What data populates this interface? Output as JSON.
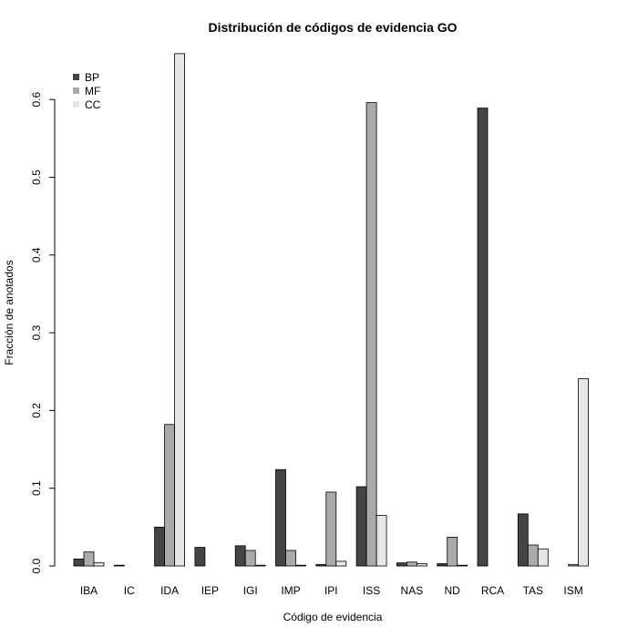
{
  "chart_data": {
    "type": "bar",
    "title": "Distribución de códigos de evidencia GO",
    "xlabel": "Código de evidencia",
    "ylabel": "Fracción de anotados",
    "ylim": [
      0,
      0.66
    ],
    "yticks": [
      0.0,
      0.1,
      0.2,
      0.3,
      0.4,
      0.5,
      0.6
    ],
    "ytick_labels": [
      "0.0",
      "0.1",
      "0.2",
      "0.3",
      "0.4",
      "0.5",
      "0.6"
    ],
    "grid": false,
    "legend_position": "top-left",
    "categories": [
      "IBA",
      "IC",
      "IDA",
      "IEP",
      "IGI",
      "IMP",
      "IPI",
      "ISS",
      "NAS",
      "ND",
      "RCA",
      "TAS",
      "ISM"
    ],
    "series": [
      {
        "name": "BP",
        "color": "#444444",
        "values": [
          0.009,
          0.001,
          0.05,
          0.024,
          0.026,
          0.124,
          0.002,
          0.102,
          0.004,
          0.003,
          0.589,
          0.067,
          0.0
        ]
      },
      {
        "name": "MF",
        "color": "#aaaaaa",
        "values": [
          0.018,
          0.0,
          0.182,
          0.0,
          0.02,
          0.02,
          0.095,
          0.596,
          0.005,
          0.037,
          0.0,
          0.027,
          0.002
        ]
      },
      {
        "name": "CC",
        "color": "#e6e6e6",
        "values": [
          0.004,
          0.0,
          0.659,
          0.0,
          0.001,
          0.001,
          0.006,
          0.065,
          0.003,
          0.001,
          0.0,
          0.022,
          0.241
        ]
      }
    ]
  }
}
